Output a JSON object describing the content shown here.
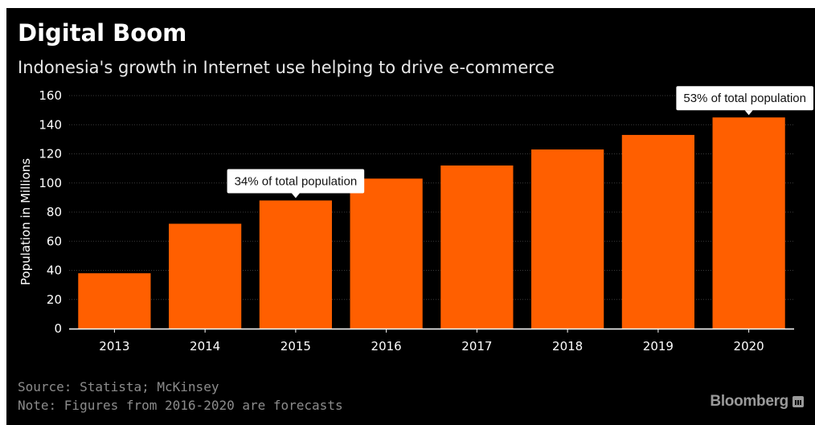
{
  "header": {
    "title": "Digital Boom",
    "subtitle": "Indonesia's growth in Internet use helping to drive e-commerce"
  },
  "footer": {
    "source": "Source: Statista; McKinsey",
    "note": "Note: Figures from 2016-2020 are forecasts",
    "brand": "Bloomberg"
  },
  "colors": {
    "bar": "#ff5f00",
    "background": "#000000",
    "text": "#ffffff",
    "muted": "#8c8c8c",
    "grid": "#3a3a3a"
  },
  "chart_data": {
    "type": "bar",
    "categories": [
      "2013",
      "2014",
      "2015",
      "2016",
      "2017",
      "2018",
      "2019",
      "2020"
    ],
    "values": [
      38,
      72,
      88,
      103,
      112,
      123,
      133,
      145
    ],
    "ylabel": "Population in Millions",
    "ylim": [
      0,
      160
    ],
    "yticks": [
      0,
      20,
      40,
      60,
      80,
      100,
      120,
      140,
      160
    ],
    "grid": true,
    "annotations": [
      {
        "category": "2015",
        "text": "34% of total population"
      },
      {
        "category": "2020",
        "text": "53% of total population"
      }
    ]
  }
}
